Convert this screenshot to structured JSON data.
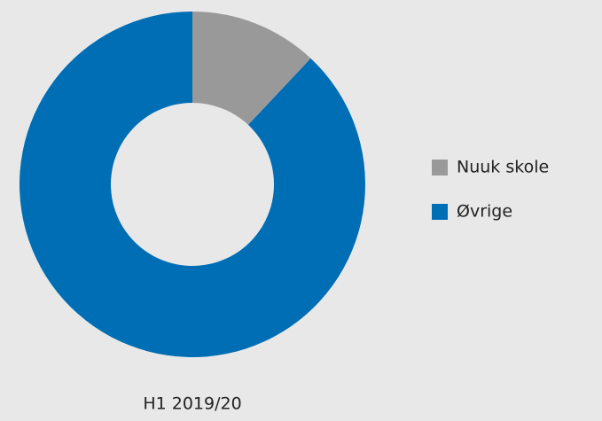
{
  "chart_data": {
    "type": "pie",
    "xlabel": "H1 2019/20",
    "categories": [
      "Nuuk skole",
      "Øvrige"
    ],
    "values": [
      12,
      88
    ],
    "colors": [
      "#999999",
      "#006eb4"
    ],
    "hole": true,
    "legend": "right"
  }
}
